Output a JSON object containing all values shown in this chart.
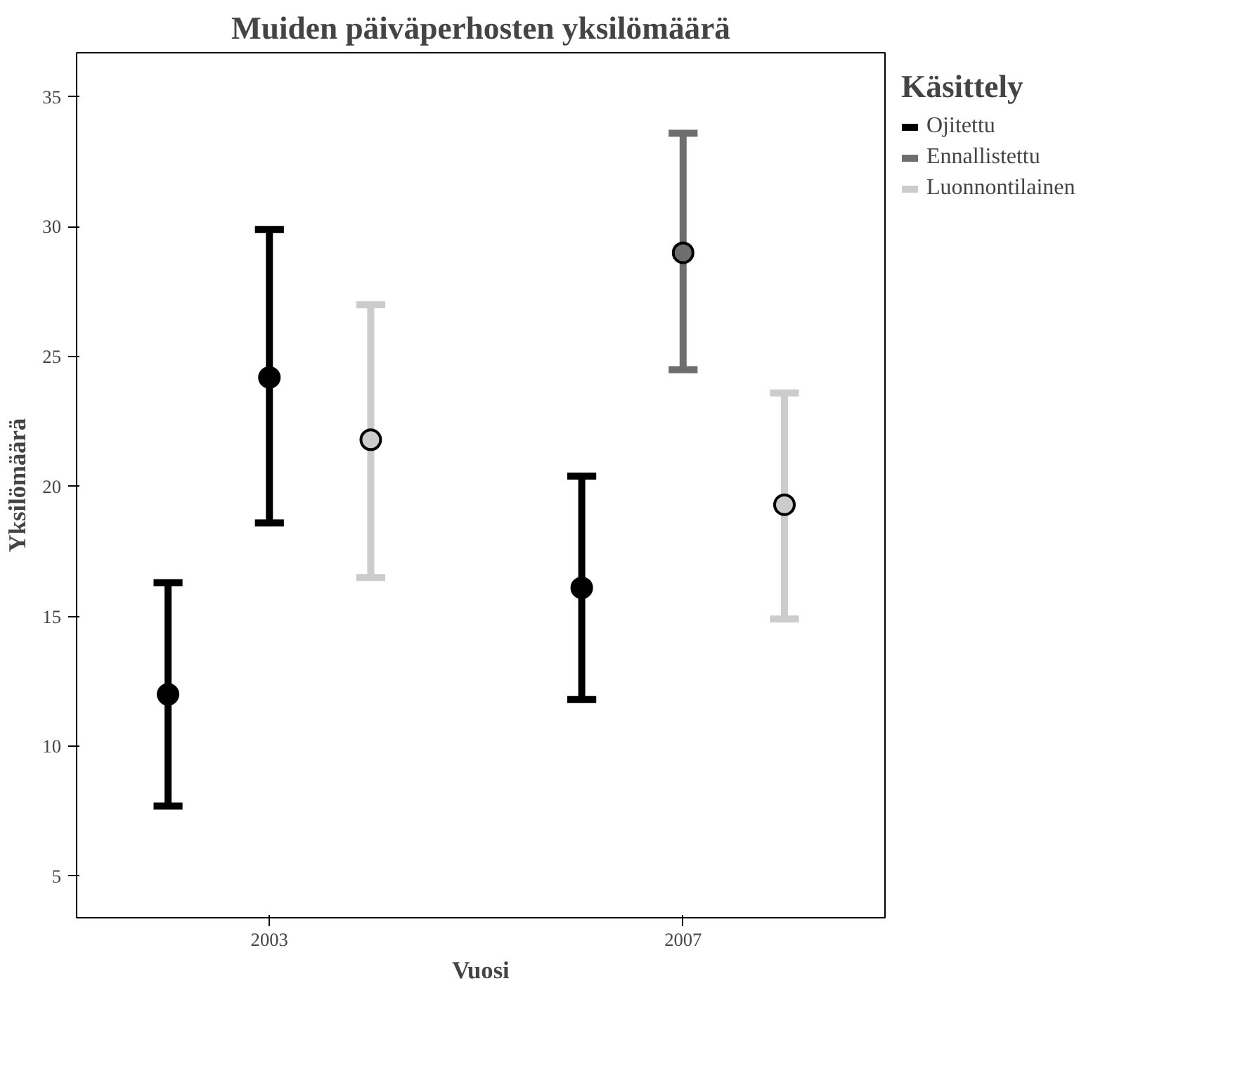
{
  "chart_data": {
    "type": "scatter",
    "title": "Muiden päiväperhosten yksilömäärä",
    "xlabel": "Vuosi",
    "ylabel": "Yksilömäärä",
    "legend_title": "Käsittely",
    "categories": [
      "2003",
      "2007"
    ],
    "series": [
      {
        "name": "Ojitettu",
        "color": "#000000",
        "values": [
          12.0,
          16.1
        ],
        "errors": [
          [
            7.7,
            16.3
          ],
          [
            11.8,
            20.4
          ]
        ]
      },
      {
        "name": "Ennallistettu",
        "color": "#6e6e6e",
        "colors": [
          "#000000",
          "#6e6e6e"
        ],
        "values": [
          24.2,
          29.0
        ],
        "errors": [
          [
            18.6,
            29.9
          ],
          [
            24.5,
            33.6
          ]
        ]
      },
      {
        "name": "Luonnontilainen",
        "color": "#cccccc",
        "values": [
          21.8,
          19.3
        ],
        "errors": [
          [
            16.5,
            27.0
          ],
          [
            14.9,
            23.6
          ]
        ]
      }
    ],
    "ylim": [
      3.4,
      36.7
    ],
    "yticks": [
      5,
      10,
      15,
      20,
      25,
      30,
      35
    ],
    "grid": false,
    "legend": "top right",
    "marker": "circle"
  }
}
